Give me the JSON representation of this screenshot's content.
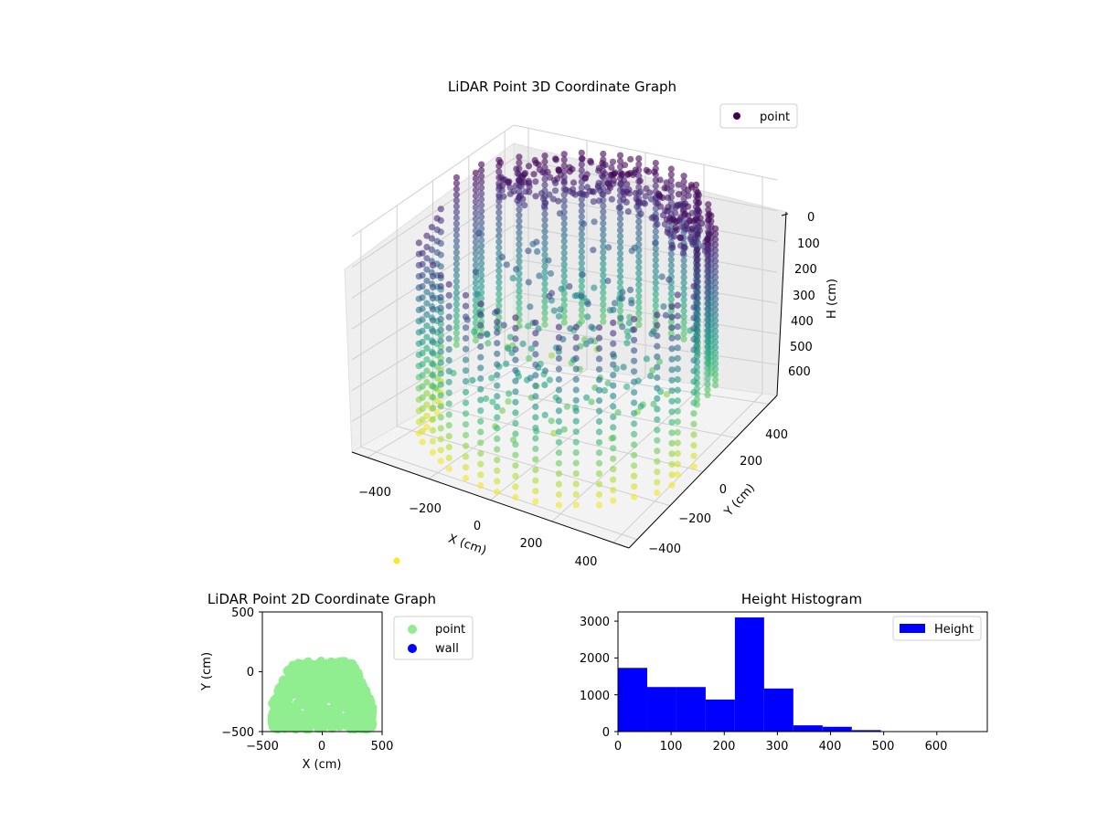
{
  "chart_data": [
    {
      "type": "scatter",
      "title": "LiDAR Point 3D Coordinate Graph",
      "xlabel": "X (cm)",
      "ylabel": "Y (cm)",
      "zlabel": "H (cm)",
      "x_ticks": [
        "−400",
        "−200",
        "0",
        "200",
        "400"
      ],
      "y_ticks": [
        "−400",
        "−200",
        "0",
        "200",
        "400"
      ],
      "z_ticks": [
        "0",
        "100",
        "200",
        "300",
        "400",
        "500",
        "600"
      ],
      "xlim": [
        -450,
        450
      ],
      "ylim": [
        -450,
        450
      ],
      "zlim": [
        0,
        700
      ],
      "z_inverted": true,
      "colormap": "viridis",
      "legend": [
        {
          "label": "point",
          "color": "#440154"
        }
      ],
      "legend_position": "top-right",
      "grid": true,
      "series": [
        {
          "name": "point",
          "shape": "cylindrical wall of points, radius ~420 cm, heights 0–690 cm, colored by height"
        }
      ]
    },
    {
      "type": "scatter",
      "title": "LiDAR Point 2D Coordinate Graph",
      "xlabel": "X (cm)",
      "ylabel": "Y (cm)",
      "x_ticks": [
        "−500",
        "0",
        "500"
      ],
      "y_ticks": [
        "−500",
        "0",
        "500"
      ],
      "xlim": [
        -500,
        500
      ],
      "ylim": [
        -500,
        500
      ],
      "legend": [
        {
          "label": "point",
          "color": "#90ee90"
        },
        {
          "label": "wall",
          "color": "#0000ff"
        }
      ],
      "legend_position": "outside-right"
    },
    {
      "type": "bar",
      "title": "Height Histogram",
      "xlabel": "",
      "ylabel": "",
      "x_ticks": [
        "0",
        "100",
        "200",
        "300",
        "400",
        "500",
        "600"
      ],
      "y_ticks": [
        "0",
        "1000",
        "2000",
        "3000"
      ],
      "xlim": [
        0,
        695
      ],
      "ylim": [
        0,
        3250
      ],
      "bin_edges": [
        0,
        55,
        110,
        165,
        220,
        275,
        330,
        385,
        440,
        495,
        550,
        605,
        660
      ],
      "values": [
        1730,
        1210,
        1210,
        870,
        3100,
        1170,
        170,
        130,
        40,
        0,
        0,
        0
      ],
      "color": "#0000ff",
      "legend": [
        {
          "label": "Height",
          "color": "#0000ff"
        }
      ],
      "legend_position": "top-right"
    }
  ]
}
